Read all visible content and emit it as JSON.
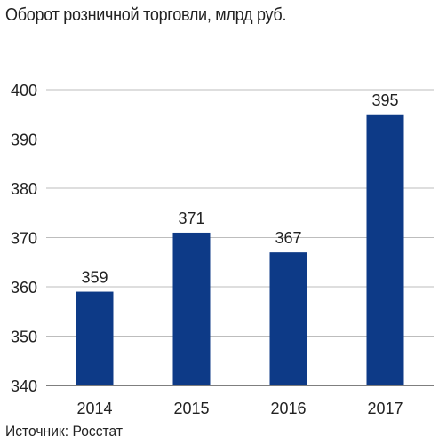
{
  "chart_data": {
    "type": "bar",
    "title": "Оборот розничной торговли, млрд руб.",
    "categories": [
      "2014",
      "2015",
      "2016",
      "2017"
    ],
    "values": [
      359,
      371,
      367,
      395
    ],
    "data_labels": [
      "359",
      "371",
      "367",
      "395"
    ],
    "yticks": [
      "340",
      "350",
      "360",
      "370",
      "380",
      "390",
      "400"
    ],
    "ylim": [
      340,
      400
    ],
    "grid": "horizontal",
    "bar_color": "#0d3a87",
    "source": "Источник: Росстат"
  }
}
